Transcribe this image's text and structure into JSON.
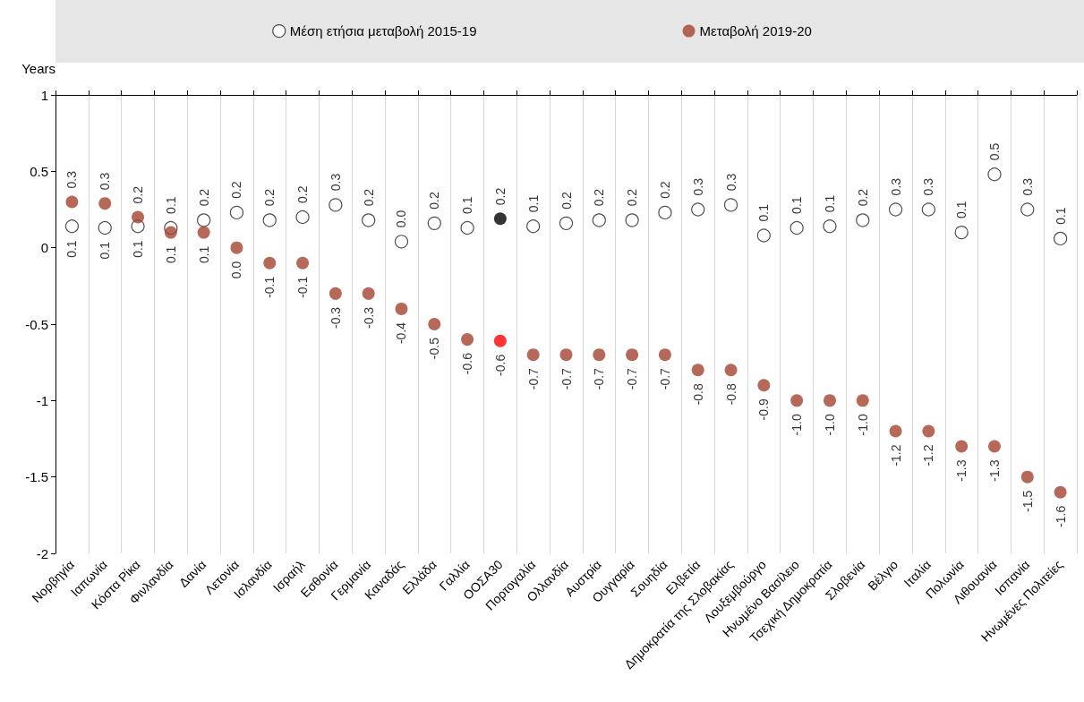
{
  "chart_data": {
    "type": "scatter",
    "ylabel": "Years",
    "categories": [
      "Νορβηγία",
      "Ιαπωνία",
      "Κόστα Ρίκα",
      "Φινλανδία",
      "Δανία",
      "Λετονία",
      "Ισλανδία",
      "Ισραήλ",
      "Εσθονία",
      "Γερμανία",
      "Καναδάς",
      "Ελλάδα",
      "Γαλλία",
      "ΟΟΣΑ30",
      "Πορτογαλία",
      "Ολλανδία",
      "Αυστρία",
      "Ουγγαρία",
      "Σουηδία",
      "Ελβετία",
      "Δημοκρατία της Σλοβακίας",
      "Λουξεμβούργο",
      "Ηνωμένο Βασίλειο",
      "Τσεχική Δημοκρατία",
      "Σλοβενία",
      "Βέλγιο",
      "Ιταλία",
      "Πολωνία",
      "Λιθουανία",
      "Ισπανία",
      "Ηνωμένες Πολιτείες"
    ],
    "series": [
      {
        "name": "Μέση ετήσια μεταβολή 2015-19",
        "color": "#ffffff",
        "colors": [
          "#ffffff",
          "#ffffff",
          "#ffffff",
          "#ffffff",
          "#ffffff",
          "#ffffff",
          "#ffffff",
          "#ffffff",
          "#ffffff",
          "#ffffff",
          "#ffffff",
          "#ffffff",
          "#ffffff",
          "#000000",
          "#ffffff",
          "#ffffff",
          "#ffffff",
          "#ffffff",
          "#ffffff",
          "#ffffff",
          "#ffffff",
          "#ffffff",
          "#ffffff",
          "#ffffff",
          "#ffffff",
          "#ffffff",
          "#ffffff",
          "#ffffff",
          "#ffffff",
          "#ffffff",
          "#ffffff"
        ],
        "values": [
          0.14,
          0.13,
          0.14,
          0.13,
          0.18,
          0.23,
          0.18,
          0.2,
          0.28,
          0.18,
          0.04,
          0.16,
          0.13,
          0.19,
          0.14,
          0.16,
          0.18,
          0.18,
          0.23,
          0.25,
          0.28,
          0.08,
          0.13,
          0.14,
          0.18,
          0.25,
          0.25,
          0.1,
          0.48,
          0.25,
          0.06
        ],
        "value_labels": [
          "0.1",
          "0.1",
          "0.1",
          "0.1",
          "0.2",
          "0.2",
          "0.2",
          "0.2",
          "0.3",
          "0.2",
          "0.0",
          "0.2",
          "0.1",
          "0.2",
          "0.1",
          "0.2",
          "0.2",
          "0.2",
          "0.2",
          "0.3",
          "0.3",
          "0.1",
          "0.1",
          "0.1",
          "0.2",
          "0.3",
          "0.3",
          "0.1",
          "0.5",
          "0.3",
          "0.1"
        ]
      },
      {
        "name": "Μεταβολή 2019-20",
        "color": "#a5432f",
        "colors": [
          "#a5432f",
          "#a5432f",
          "#a5432f",
          "#a5432f",
          "#a5432f",
          "#a5432f",
          "#a5432f",
          "#a5432f",
          "#a5432f",
          "#a5432f",
          "#a5432f",
          "#a5432f",
          "#a5432f",
          "#ff0000",
          "#a5432f",
          "#a5432f",
          "#a5432f",
          "#a5432f",
          "#a5432f",
          "#a5432f",
          "#a5432f",
          "#a5432f",
          "#a5432f",
          "#a5432f",
          "#a5432f",
          "#a5432f",
          "#a5432f",
          "#a5432f",
          "#a5432f",
          "#a5432f",
          "#a5432f"
        ],
        "values": [
          0.3,
          0.29,
          0.2,
          0.1,
          0.1,
          0.0,
          -0.1,
          -0.1,
          -0.3,
          -0.3,
          -0.4,
          -0.5,
          -0.6,
          -0.61,
          -0.7,
          -0.7,
          -0.7,
          -0.7,
          -0.7,
          -0.8,
          -0.8,
          -0.9,
          -1.0,
          -1.0,
          -1.0,
          -1.2,
          -1.2,
          -1.3,
          -1.3,
          -1.5,
          -1.6
        ],
        "value_labels": [
          "0.3",
          "0.3",
          "0.2",
          "0.1",
          "0.1",
          "0.0",
          "-0.1",
          "-0.1",
          "-0.3",
          "-0.3",
          "-0.4",
          "-0.5",
          "-0.6",
          "-0.6",
          "-0.7",
          "-0.7",
          "-0.7",
          "-0.7",
          "-0.7",
          "-0.8",
          "-0.8",
          "-0.9",
          "-1.0",
          "-1.0",
          "-1.0",
          "-1.2",
          "-1.2",
          "-1.3",
          "-1.3",
          "-1.5",
          "-1.6"
        ]
      }
    ],
    "ylim": [
      -2,
      1
    ],
    "yticks": [
      -2,
      -1.5,
      -1,
      -0.5,
      0,
      0.5,
      1
    ],
    "grid": "x",
    "legend": "top",
    "marker": "circle"
  }
}
